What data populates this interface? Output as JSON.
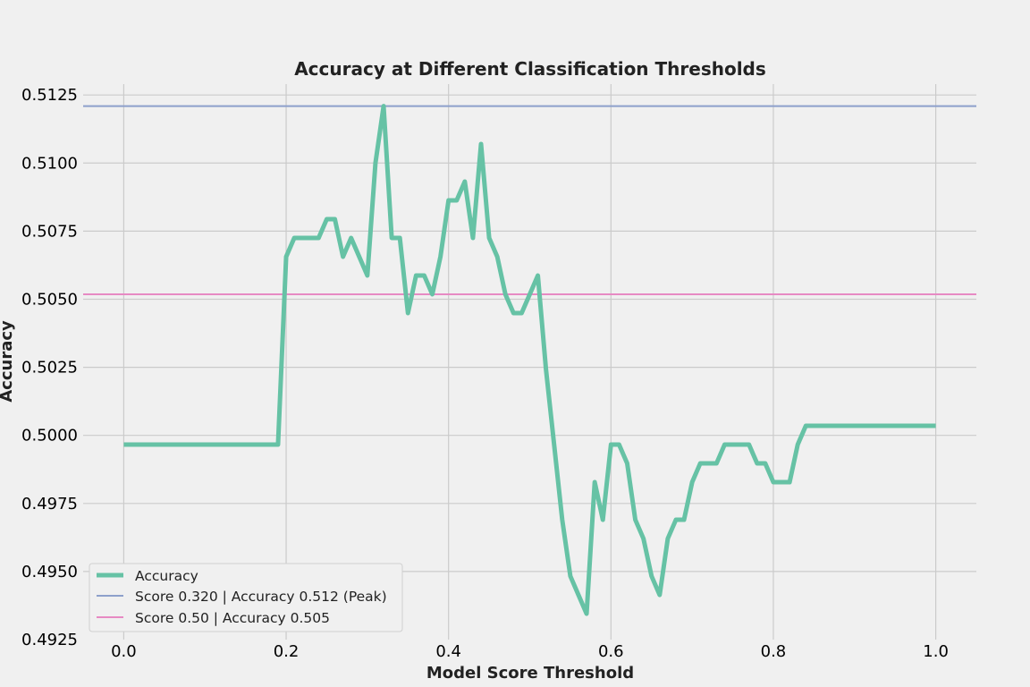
{
  "chart_data": {
    "type": "line",
    "title": "Accuracy at Different Classification Thresholds",
    "xlabel": "Model Score Threshold",
    "ylabel": "Accuracy",
    "xlim": [
      -0.05,
      1.05
    ],
    "ylim": [
      0.4925,
      0.5129
    ],
    "x_ticks": [
      0.0,
      0.2,
      0.4,
      0.6,
      0.8,
      1.0
    ],
    "x_tick_labels": [
      "0.0",
      "0.2",
      "0.4",
      "0.6",
      "0.8",
      "1.0"
    ],
    "y_ticks": [
      0.4925,
      0.495,
      0.4975,
      0.5,
      0.5025,
      0.505,
      0.5075,
      0.51,
      0.5125
    ],
    "y_tick_labels": [
      "0.4925",
      "0.4950",
      "0.4975",
      "0.5000",
      "0.5025",
      "0.5050",
      "0.5075",
      "0.5100",
      "0.5125"
    ],
    "grid": true,
    "legend_position": "bottom-left",
    "series": [
      {
        "name": "Accuracy",
        "color": "#66c2a5",
        "x": [
          0.0,
          0.01,
          0.02,
          0.03,
          0.04,
          0.05,
          0.06,
          0.07,
          0.08,
          0.09,
          0.1,
          0.11,
          0.12,
          0.13,
          0.14,
          0.15,
          0.16,
          0.17,
          0.18,
          0.19,
          0.2,
          0.21,
          0.22,
          0.23,
          0.24,
          0.25,
          0.26,
          0.27,
          0.28,
          0.29,
          0.3,
          0.31,
          0.32,
          0.33,
          0.34,
          0.35,
          0.36,
          0.37,
          0.38,
          0.39,
          0.4,
          0.41,
          0.42,
          0.43,
          0.44,
          0.45,
          0.46,
          0.47,
          0.48,
          0.49,
          0.5,
          0.51,
          0.52,
          0.53,
          0.54,
          0.55,
          0.56,
          0.57,
          0.58,
          0.59,
          0.6,
          0.61,
          0.62,
          0.63,
          0.64,
          0.65,
          0.66,
          0.67,
          0.68,
          0.69,
          0.7,
          0.71,
          0.72,
          0.73,
          0.74,
          0.75,
          0.76,
          0.77,
          0.78,
          0.79,
          0.8,
          0.81,
          0.82,
          0.83,
          0.84,
          0.85,
          0.86,
          0.87,
          0.88,
          0.89,
          0.9,
          0.91,
          0.92,
          0.93,
          0.94,
          0.95,
          0.96,
          0.97,
          0.98,
          0.99,
          1.0
        ],
        "y": [
          0.49966,
          0.49966,
          0.49966,
          0.49966,
          0.49966,
          0.49966,
          0.49966,
          0.49966,
          0.49966,
          0.49966,
          0.49966,
          0.49966,
          0.49966,
          0.49966,
          0.49966,
          0.49966,
          0.49966,
          0.49966,
          0.49966,
          0.49966,
          0.50656,
          0.50725,
          0.50725,
          0.50725,
          0.50725,
          0.50794,
          0.50794,
          0.50656,
          0.50725,
          0.50656,
          0.50587,
          0.51001,
          0.51209,
          0.50725,
          0.50725,
          0.50449,
          0.50587,
          0.50587,
          0.50518,
          0.50656,
          0.50863,
          0.50863,
          0.50932,
          0.50725,
          0.5107,
          0.50725,
          0.50656,
          0.50518,
          0.50449,
          0.50449,
          0.50518,
          0.50587,
          0.50242,
          0.49966,
          0.4969,
          0.49483,
          0.49414,
          0.49345,
          0.49828,
          0.4969,
          0.49966,
          0.49966,
          0.49897,
          0.4969,
          0.49621,
          0.49483,
          0.49414,
          0.49621,
          0.4969,
          0.4969,
          0.49828,
          0.49897,
          0.49897,
          0.49897,
          0.49966,
          0.49966,
          0.49966,
          0.49966,
          0.49897,
          0.49897,
          0.49828,
          0.49828,
          0.49828,
          0.49966,
          0.50035,
          0.50035,
          0.50035,
          0.50035,
          0.50035,
          0.50035,
          0.50035,
          0.50035,
          0.50035,
          0.50035,
          0.50035,
          0.50035,
          0.50035,
          0.50035,
          0.50035,
          0.50035,
          0.50035
        ]
      }
    ],
    "hlines": [
      {
        "name": "Score 0.320 | Accuracy 0.512 (Peak)",
        "y": 0.51209,
        "color": "#8da0cb"
      },
      {
        "name": "Score 0.50 | Accuracy 0.505",
        "y": 0.50518,
        "color": "#e78ac3"
      }
    ]
  }
}
